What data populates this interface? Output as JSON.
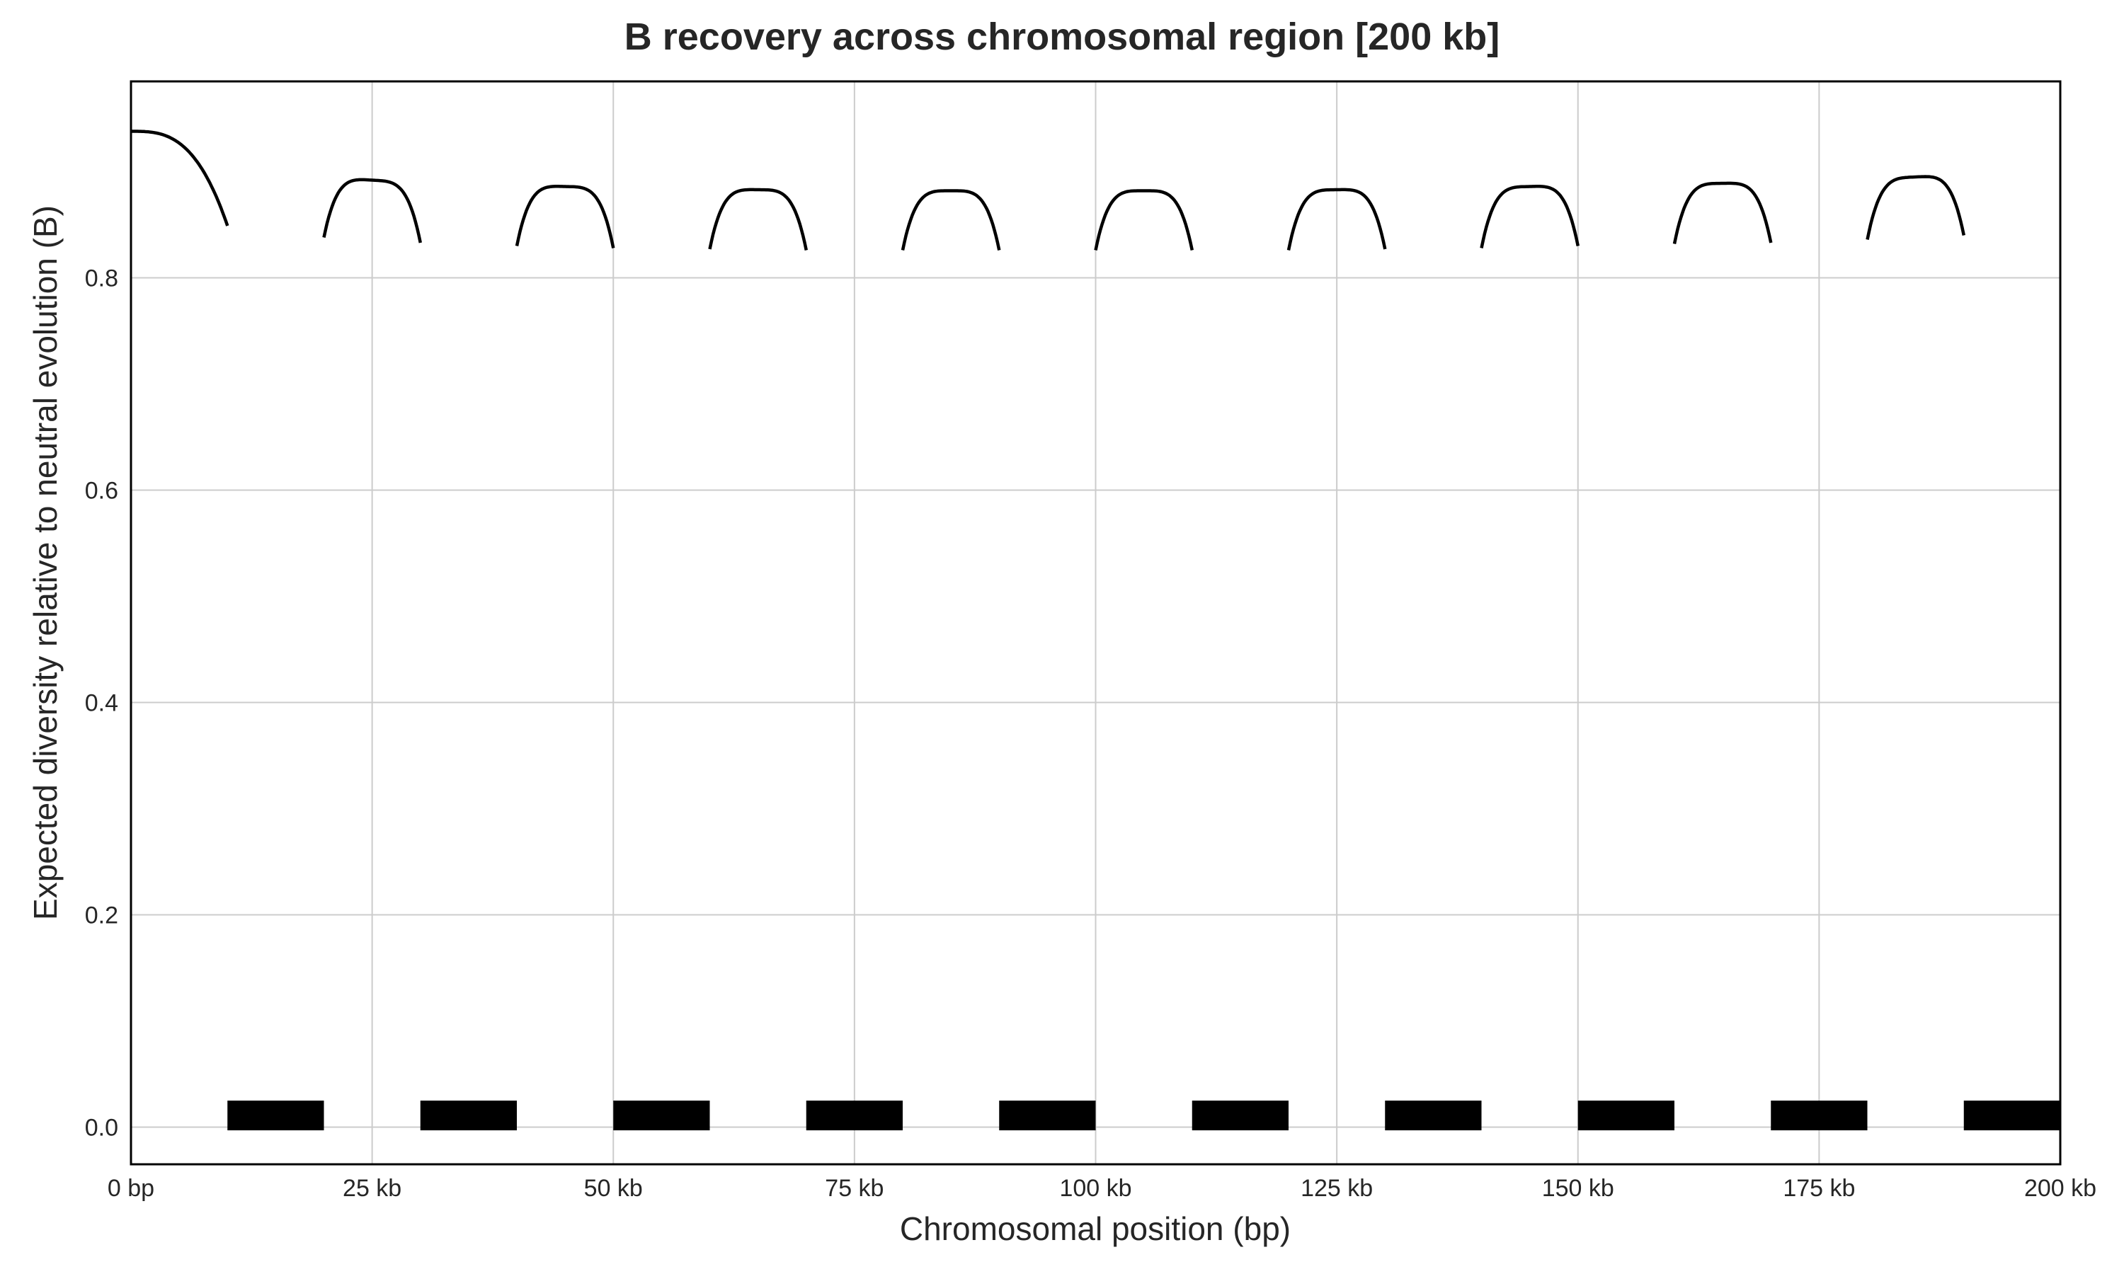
{
  "chart_data": {
    "type": "line",
    "title": "B recovery across chromosomal region [200 kb]",
    "xlabel": "Chromosomal position (bp)",
    "ylabel": "Expected diversity relative to neutral evolution (B)",
    "xlim": [
      0,
      200000
    ],
    "ylim": [
      -0.035,
      0.985
    ],
    "grid": true,
    "x_ticks": [
      {
        "value": 0,
        "label": "0 bp"
      },
      {
        "value": 25000,
        "label": "25 kb"
      },
      {
        "value": 50000,
        "label": "50 kb"
      },
      {
        "value": 75000,
        "label": "75 kb"
      },
      {
        "value": 100000,
        "label": "100 kb"
      },
      {
        "value": 125000,
        "label": "125 kb"
      },
      {
        "value": 150000,
        "label": "150 kb"
      },
      {
        "value": 175000,
        "label": "175 kb"
      },
      {
        "value": 200000,
        "label": "200 kb"
      }
    ],
    "y_ticks": [
      {
        "value": 0.0,
        "label": "0.0"
      },
      {
        "value": 0.2,
        "label": "0.2"
      },
      {
        "value": 0.4,
        "label": "0.4"
      },
      {
        "value": 0.6,
        "label": "0.6"
      },
      {
        "value": 0.8,
        "label": "0.8"
      }
    ],
    "segments": [
      {
        "x_start": 0,
        "x_end": 10000,
        "y_start": 0.938,
        "y_peak": 0.938,
        "y_end": 0.849,
        "kind": "decay"
      },
      {
        "x_start": 20000,
        "x_end": 30000,
        "y_start": 0.838,
        "y_peak": 0.892,
        "y_end": 0.833
      },
      {
        "x_start": 40000,
        "x_end": 50000,
        "y_start": 0.83,
        "y_peak": 0.886,
        "y_end": 0.828
      },
      {
        "x_start": 60000,
        "x_end": 70000,
        "y_start": 0.827,
        "y_peak": 0.883,
        "y_end": 0.826
      },
      {
        "x_start": 80000,
        "x_end": 90000,
        "y_start": 0.826,
        "y_peak": 0.882,
        "y_end": 0.826
      },
      {
        "x_start": 100000,
        "x_end": 110000,
        "y_start": 0.826,
        "y_peak": 0.882,
        "y_end": 0.826
      },
      {
        "x_start": 120000,
        "x_end": 130000,
        "y_start": 0.826,
        "y_peak": 0.883,
        "y_end": 0.827
      },
      {
        "x_start": 140000,
        "x_end": 150000,
        "y_start": 0.828,
        "y_peak": 0.886,
        "y_end": 0.83
      },
      {
        "x_start": 160000,
        "x_end": 170000,
        "y_start": 0.832,
        "y_peak": 0.889,
        "y_end": 0.833
      },
      {
        "x_start": 180000,
        "x_end": 190000,
        "y_start": 0.836,
        "y_peak": 0.895,
        "y_end": 0.84
      }
    ],
    "selected_regions": [
      {
        "start": 10000,
        "end": 20000
      },
      {
        "start": 30000,
        "end": 40000
      },
      {
        "start": 50000,
        "end": 60000
      },
      {
        "start": 70000,
        "end": 80000
      },
      {
        "start": 90000,
        "end": 100000
      },
      {
        "start": 110000,
        "end": 120000
      },
      {
        "start": 130000,
        "end": 140000
      },
      {
        "start": 150000,
        "end": 160000
      },
      {
        "start": 170000,
        "end": 180000
      },
      {
        "start": 190000,
        "end": 200000
      }
    ],
    "region_y": 0.011,
    "colors": {
      "line": "#000000",
      "grid": "#cccccc",
      "regions": "#000000",
      "text": "#262626"
    }
  }
}
